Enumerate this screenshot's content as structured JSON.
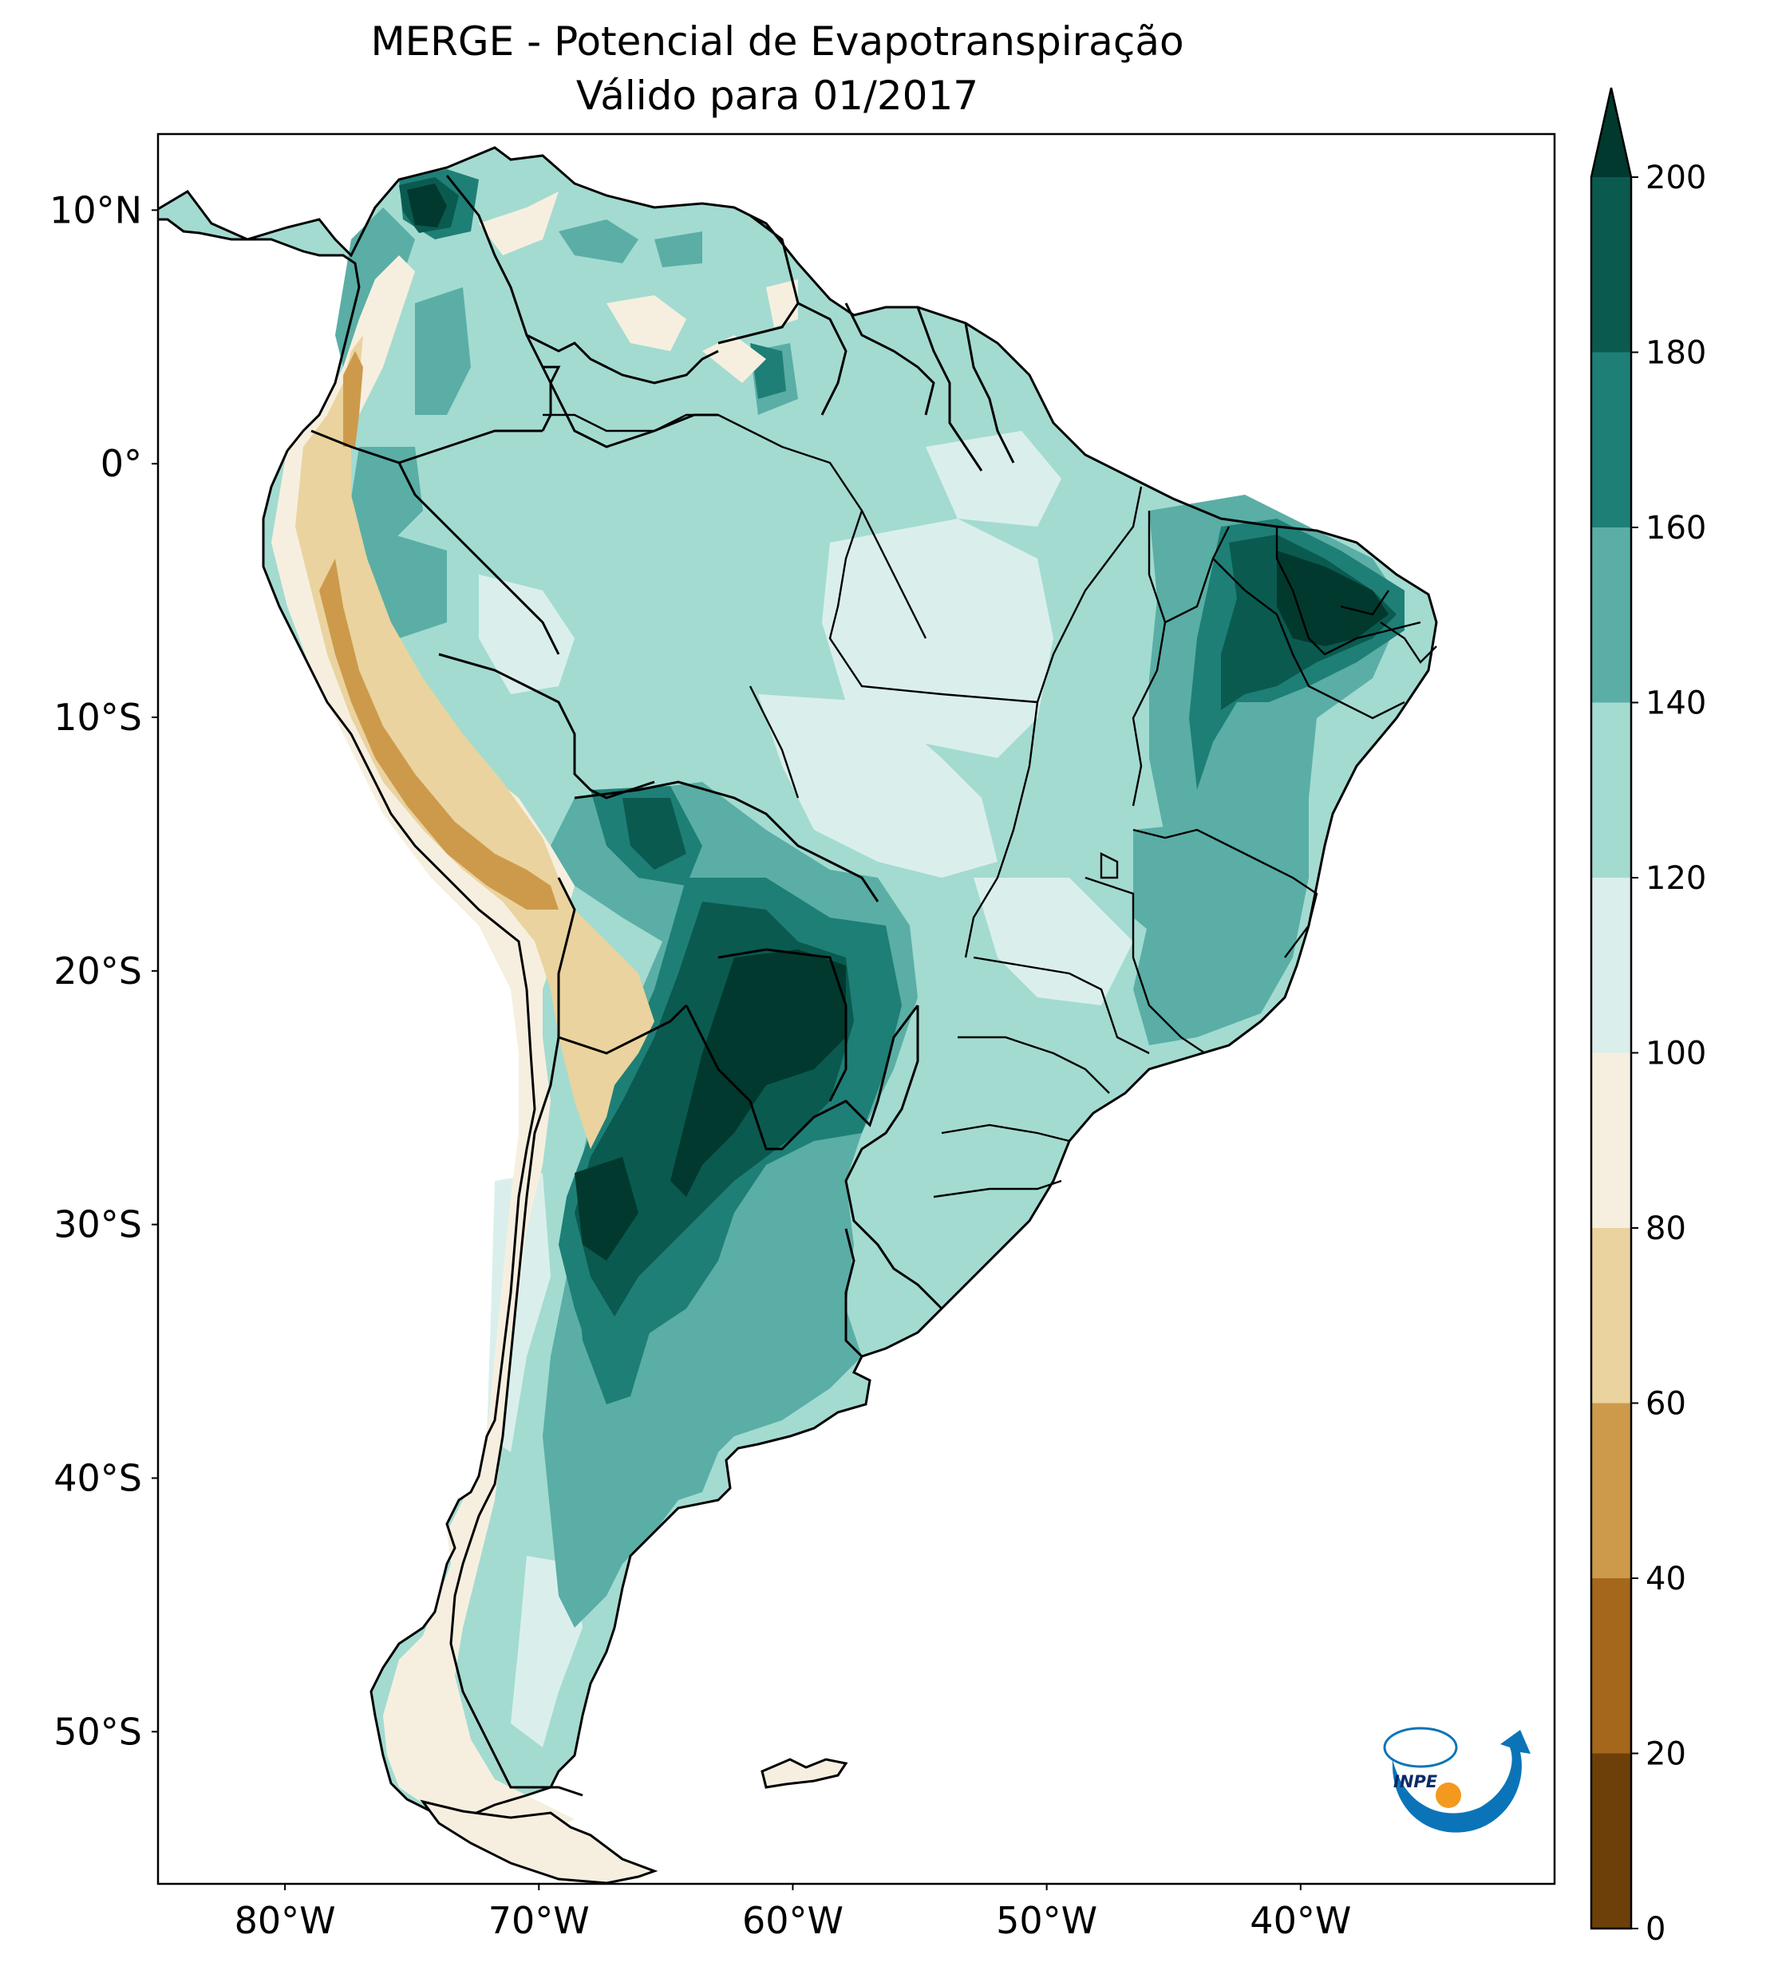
{
  "title": {
    "line1": "MERGE - Potencial de Evapotranspiração",
    "line2": "Válido para 01/2017"
  },
  "map": {
    "variable": "Potencial de Evapotranspiração",
    "lon_range": [
      -85,
      -30
    ],
    "lat_range": [
      -56,
      13
    ],
    "lat_ticks": [
      {
        "value": 10,
        "label": "10°N"
      },
      {
        "value": 0,
        "label": "0°"
      },
      {
        "value": -10,
        "label": "10°S"
      },
      {
        "value": -20,
        "label": "20°S"
      },
      {
        "value": -30,
        "label": "30°S"
      },
      {
        "value": -40,
        "label": "40°S"
      },
      {
        "value": -50,
        "label": "50°S"
      }
    ],
    "lon_ticks": [
      {
        "value": -80,
        "label": "80°W"
      },
      {
        "value": -70,
        "label": "70°W"
      },
      {
        "value": -60,
        "label": "60°W"
      },
      {
        "value": -50,
        "label": "50°W"
      },
      {
        "value": -40,
        "label": "40°W"
      }
    ]
  },
  "colorbar": {
    "levels": [
      0,
      20,
      40,
      60,
      80,
      100,
      120,
      140,
      160,
      180,
      200
    ],
    "labels": [
      "0",
      "20",
      "40",
      "60",
      "80",
      "100",
      "120",
      "140",
      "160",
      "180",
      "200"
    ],
    "colors": [
      "#6e4009",
      "#a4671c",
      "#cd9a4c",
      "#ead39e",
      "#f6efe0",
      "#daefec",
      "#a3dbd1",
      "#5aaea5",
      "#1e7f76",
      "#0a5a50"
    ],
    "extend_color": "#01392e",
    "extend": "max"
  },
  "logo": {
    "text": "INPE",
    "colors": {
      "blue": "#0b74b8",
      "orange": "#f39a1e"
    }
  }
}
